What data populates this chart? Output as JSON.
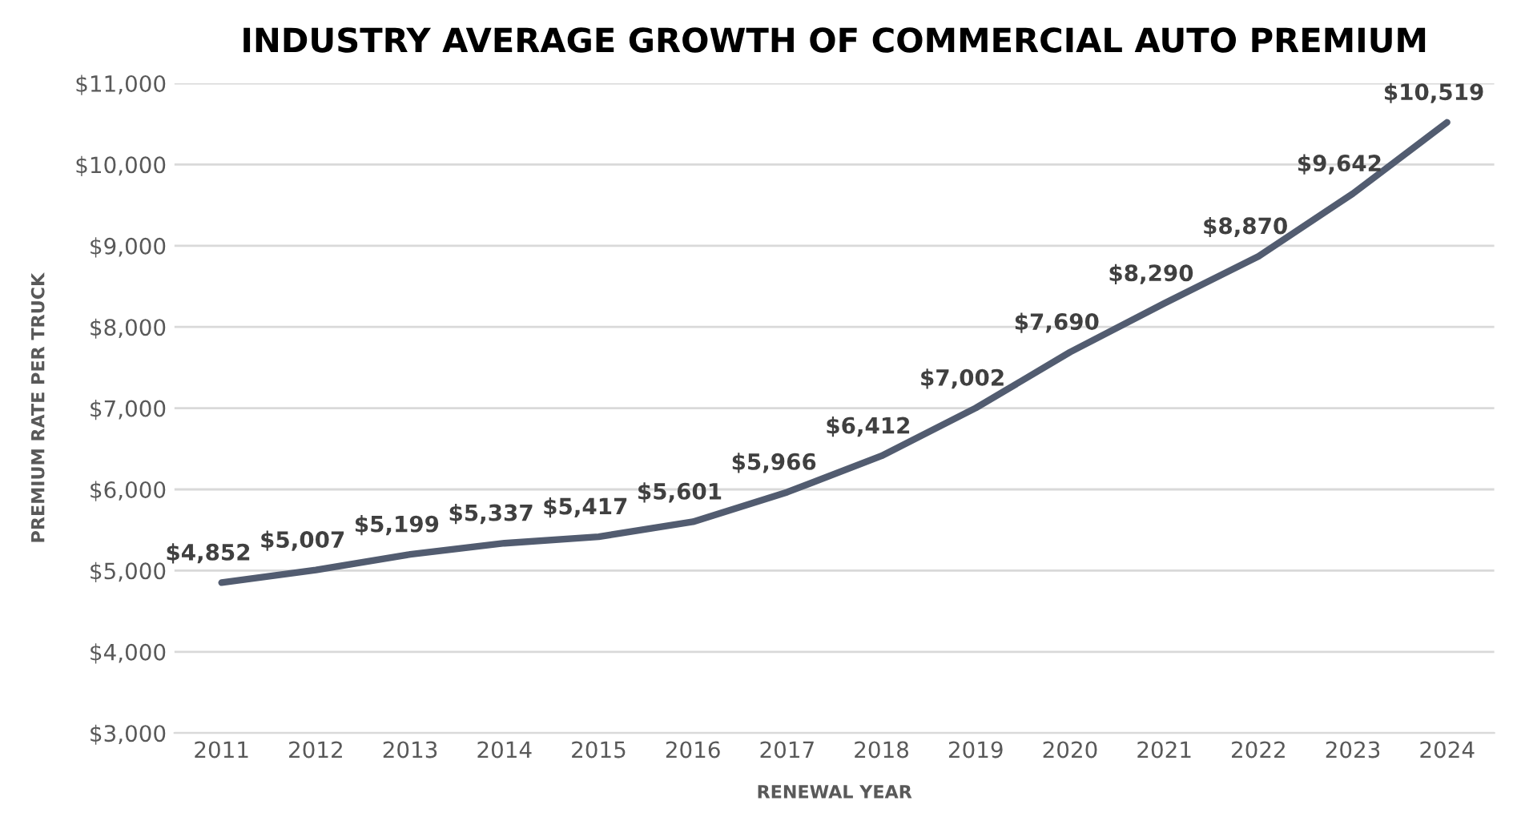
{
  "chart_data": {
    "type": "line",
    "title": "INDUSTRY AVERAGE GROWTH OF COMMERCIAL AUTO PREMIUM",
    "xlabel": "RENEWAL YEAR",
    "ylabel": "PREMIUM RATE PER TRUCK",
    "categories": [
      "2011",
      "2012",
      "2013",
      "2014",
      "2015",
      "2016",
      "2017",
      "2018",
      "2019",
      "2020",
      "2021",
      "2022",
      "2023",
      "2024"
    ],
    "series": [
      {
        "color": "#525c70",
        "values": [
          4852,
          5007,
          5199,
          5337,
          5417,
          5601,
          5966,
          6412,
          7002,
          7690,
          8290,
          8870,
          9642,
          10519
        ],
        "value_labels": [
          "$4,852",
          "$5,007",
          "$5,199",
          "$5,337",
          "$5,417",
          "$5,601",
          "$5,966",
          "$6,412",
          "$7,002",
          "$7,690",
          "$8,290",
          "$8,870",
          "$9,642",
          "$10,519"
        ]
      }
    ],
    "ylim": [
      3000,
      11000
    ],
    "yticks": [
      {
        "value": 3000,
        "label": "$3,000"
      },
      {
        "value": 4000,
        "label": "$4,000"
      },
      {
        "value": 5000,
        "label": "$5,000"
      },
      {
        "value": 6000,
        "label": "$6,000"
      },
      {
        "value": 7000,
        "label": "$7,000"
      },
      {
        "value": 8000,
        "label": "$8,000"
      },
      {
        "value": 9000,
        "label": "$9,000"
      },
      {
        "value": 10000,
        "label": "$10,000"
      },
      {
        "value": 11000,
        "label": "$11,000"
      }
    ],
    "grid": "y",
    "legend": false,
    "marker": "none",
    "line_style": "solid"
  }
}
